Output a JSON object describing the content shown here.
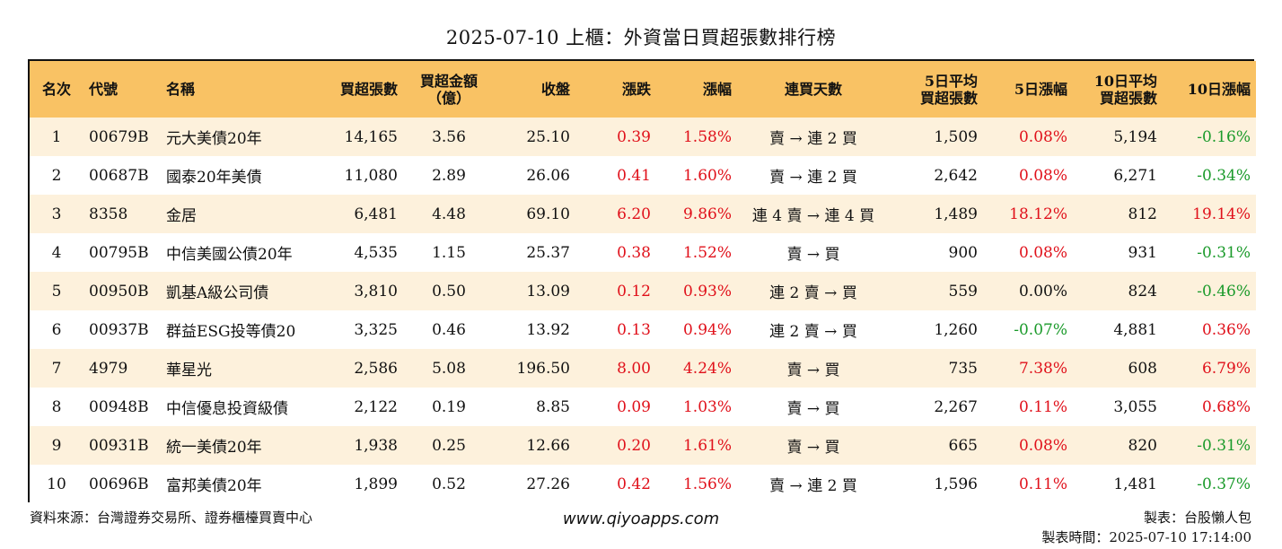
{
  "title": "2025-07-10 上櫃：外資當日買超張數排行榜",
  "headers": {
    "rank": "名次",
    "code": "代號",
    "name": "名稱",
    "buy_qty": "買超張數",
    "buy_amt_1": "買超金額",
    "buy_amt_2": "（億）",
    "close": "收盤",
    "change": "漲跌",
    "pct": "漲幅",
    "days": "連買天數",
    "avg5_1": "5日平均",
    "avg5_2": "買超張數",
    "pct5": "5日漲幅",
    "avg10_1": "10日平均",
    "avg10_2": "買超張數",
    "pct10": "10日漲幅"
  },
  "rows": [
    {
      "rank": "1",
      "code": "00679B",
      "name": "元大美債20年",
      "buy_qty": "14,165",
      "buy_amt": "3.56",
      "close": "25.10",
      "change": "0.39",
      "pct": "1.58%",
      "days": "賣 → 連 2 買",
      "avg5": "1,509",
      "pct5": "0.08%",
      "avg10": "5,194",
      "pct10": "-0.16%",
      "change_color": "red",
      "pct_color": "red",
      "pct5_color": "red",
      "pct10_color": "green"
    },
    {
      "rank": "2",
      "code": "00687B",
      "name": "國泰20年美債",
      "buy_qty": "11,080",
      "buy_amt": "2.89",
      "close": "26.06",
      "change": "0.41",
      "pct": "1.60%",
      "days": "賣 → 連 2 買",
      "avg5": "2,642",
      "pct5": "0.08%",
      "avg10": "6,271",
      "pct10": "-0.34%",
      "change_color": "red",
      "pct_color": "red",
      "pct5_color": "red",
      "pct10_color": "green"
    },
    {
      "rank": "3",
      "code": "8358",
      "name": "金居",
      "buy_qty": "6,481",
      "buy_amt": "4.48",
      "close": "69.10",
      "change": "6.20",
      "pct": "9.86%",
      "days": "連 4 賣 → 連 4 買",
      "avg5": "1,489",
      "pct5": "18.12%",
      "avg10": "812",
      "pct10": "19.14%",
      "change_color": "red",
      "pct_color": "red",
      "pct5_color": "red",
      "pct10_color": "red"
    },
    {
      "rank": "4",
      "code": "00795B",
      "name": "中信美國公債20年",
      "buy_qty": "4,535",
      "buy_amt": "1.15",
      "close": "25.37",
      "change": "0.38",
      "pct": "1.52%",
      "days": "賣 → 買",
      "avg5": "900",
      "pct5": "0.08%",
      "avg10": "931",
      "pct10": "-0.31%",
      "change_color": "red",
      "pct_color": "red",
      "pct5_color": "red",
      "pct10_color": "green"
    },
    {
      "rank": "5",
      "code": "00950B",
      "name": "凱基A級公司債",
      "buy_qty": "3,810",
      "buy_amt": "0.50",
      "close": "13.09",
      "change": "0.12",
      "pct": "0.93%",
      "days": "連 2 賣 → 買",
      "avg5": "559",
      "pct5": "0.00%",
      "avg10": "824",
      "pct10": "-0.46%",
      "change_color": "red",
      "pct_color": "red",
      "pct5_color": "black",
      "pct10_color": "green"
    },
    {
      "rank": "6",
      "code": "00937B",
      "name": "群益ESG投等債20",
      "buy_qty": "3,325",
      "buy_amt": "0.46",
      "close": "13.92",
      "change": "0.13",
      "pct": "0.94%",
      "days": "連 2 賣 → 買",
      "avg5": "1,260",
      "pct5": "-0.07%",
      "avg10": "4,881",
      "pct10": "0.36%",
      "change_color": "red",
      "pct_color": "red",
      "pct5_color": "green",
      "pct10_color": "red"
    },
    {
      "rank": "7",
      "code": "4979",
      "name": "華星光",
      "buy_qty": "2,586",
      "buy_amt": "5.08",
      "close": "196.50",
      "change": "8.00",
      "pct": "4.24%",
      "days": "賣 → 買",
      "avg5": "735",
      "pct5": "7.38%",
      "avg10": "608",
      "pct10": "6.79%",
      "change_color": "red",
      "pct_color": "red",
      "pct5_color": "red",
      "pct10_color": "red"
    },
    {
      "rank": "8",
      "code": "00948B",
      "name": "中信優息投資級債",
      "buy_qty": "2,122",
      "buy_amt": "0.19",
      "close": "8.85",
      "change": "0.09",
      "pct": "1.03%",
      "days": "賣 → 買",
      "avg5": "2,267",
      "pct5": "0.11%",
      "avg10": "3,055",
      "pct10": "0.68%",
      "change_color": "red",
      "pct_color": "red",
      "pct5_color": "red",
      "pct10_color": "red"
    },
    {
      "rank": "9",
      "code": "00931B",
      "name": "統一美債20年",
      "buy_qty": "1,938",
      "buy_amt": "0.25",
      "close": "12.66",
      "change": "0.20",
      "pct": "1.61%",
      "days": "賣 → 買",
      "avg5": "665",
      "pct5": "0.08%",
      "avg10": "820",
      "pct10": "-0.31%",
      "change_color": "red",
      "pct_color": "red",
      "pct5_color": "red",
      "pct10_color": "green"
    },
    {
      "rank": "10",
      "code": "00696B",
      "name": "富邦美債20年",
      "buy_qty": "1,899",
      "buy_amt": "0.52",
      "close": "27.26",
      "change": "0.42",
      "pct": "1.56%",
      "days": "賣 → 連 2 買",
      "avg5": "1,596",
      "pct5": "0.11%",
      "avg10": "1,481",
      "pct10": "-0.37%",
      "change_color": "red",
      "pct_color": "red",
      "pct5_color": "red",
      "pct10_color": "green"
    }
  ],
  "footer": {
    "source": "資料來源：台灣證券交易所、證券櫃檯買賣中心",
    "website": "www.qiyoapps.com",
    "maker": "製表：台股懶人包",
    "time": "製表時間：2025-07-10 17:14:00"
  },
  "colors": {
    "header_bg": "#f9c264",
    "stripe_bg": "#fdf1dc",
    "up": "#e0101a",
    "down": "#1a9a2a"
  }
}
